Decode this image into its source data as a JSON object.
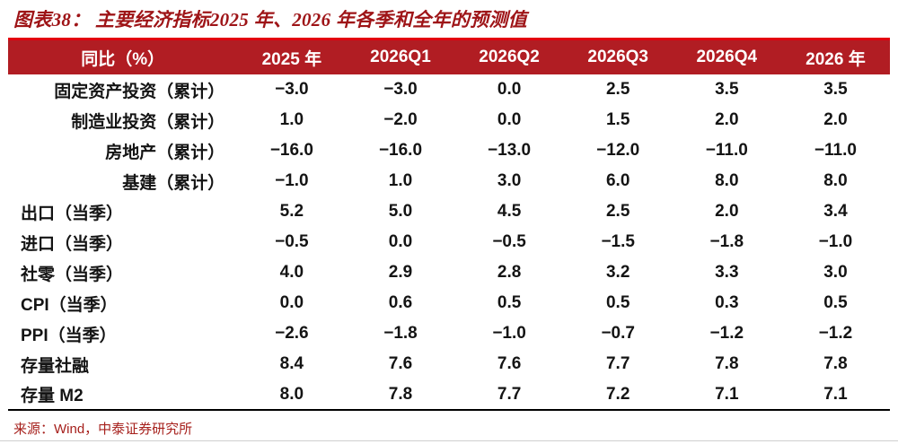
{
  "header": {
    "title": "图表38： 主要经济指标2025 年、2026 年各季和全年的预测值"
  },
  "footer": {
    "source": "来源：Wind，中泰证券研究所"
  },
  "colors": {
    "title_text": "#9e1417",
    "title_rule": "#e3000f",
    "header_bg": "#b11d23",
    "header_text": "#ffffff",
    "body_text": "#141414",
    "footer_text": "#a6201c"
  },
  "chart_data": {
    "type": "table",
    "title": "主要经济指标2025年、2026年各季和全年的预测值",
    "unit": "同比（%）",
    "columns": [
      "同比（%）",
      "2025 年",
      "2026Q1",
      "2026Q2",
      "2026Q3",
      "2026Q4",
      "2026 年"
    ],
    "rows": [
      {
        "label": "固定资产投资（累计）",
        "label_align": "right",
        "values": [
          -3.0,
          -3.0,
          0.0,
          2.5,
          3.5,
          3.5
        ]
      },
      {
        "label": "制造业投资（累计）",
        "label_align": "right",
        "values": [
          1.0,
          -2.0,
          0.0,
          1.5,
          2.0,
          2.0
        ]
      },
      {
        "label": "房地产（累计）",
        "label_align": "right",
        "values": [
          -16.0,
          -16.0,
          -13.0,
          -12.0,
          -11.0,
          -11.0
        ]
      },
      {
        "label": "基建（累计）",
        "label_align": "right",
        "values": [
          -1.0,
          1.0,
          3.0,
          6.0,
          8.0,
          8.0
        ]
      },
      {
        "label": "出口（当季）",
        "label_align": "left",
        "values": [
          5.2,
          5.0,
          4.5,
          2.5,
          2.0,
          3.4
        ]
      },
      {
        "label": "进口（当季）",
        "label_align": "left",
        "values": [
          -0.5,
          0.0,
          -0.5,
          -1.5,
          -1.8,
          -1.0
        ]
      },
      {
        "label": "社零（当季）",
        "label_align": "left",
        "values": [
          4.0,
          2.9,
          2.8,
          3.2,
          3.3,
          3.0
        ]
      },
      {
        "label": "CPI（当季）",
        "label_align": "left",
        "values": [
          0.0,
          0.6,
          0.5,
          0.5,
          0.3,
          0.5
        ]
      },
      {
        "label": "PPI（当季）",
        "label_align": "left",
        "values": [
          -2.6,
          -1.8,
          -1.0,
          -0.7,
          -1.2,
          -1.2
        ]
      },
      {
        "label": "存量社融",
        "label_align": "left",
        "values": [
          8.4,
          7.6,
          7.6,
          7.7,
          7.8,
          7.8
        ]
      },
      {
        "label": "存量 M2",
        "label_align": "left",
        "values": [
          8.0,
          7.8,
          7.7,
          7.2,
          7.1,
          7.1
        ]
      }
    ]
  }
}
